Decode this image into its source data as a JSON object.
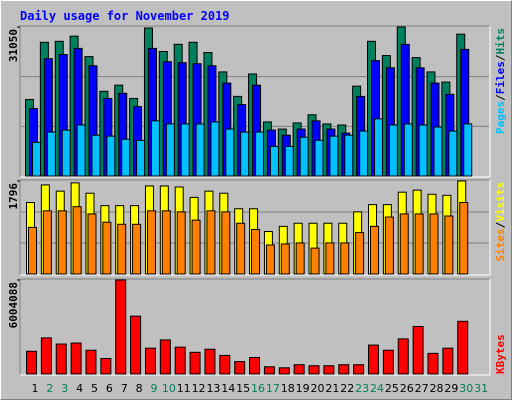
{
  "legend_separator": "/",
  "chart_data": [
    {
      "type": "bar",
      "title": "Daily usage for November 2019",
      "ylim": [
        0,
        31050
      ],
      "yticks": [
        31050
      ],
      "series": [
        {
          "name": "Hits",
          "color": "#00805c",
          "values": [
            15950,
            27860,
            28070,
            29140,
            24880,
            17650,
            18930,
            16160,
            30840,
            25950,
            27440,
            27860,
            25730,
            21690,
            16590,
            21270,
            11270,
            9780,
            11060,
            12760,
            10850,
            10630,
            18720,
            28070,
            25100,
            31050,
            24670,
            21690,
            19570,
            29560,
            null
          ]
        },
        {
          "name": "Files",
          "color": "#0000ff",
          "values": [
            14040,
            24460,
            25310,
            26590,
            22970,
            16160,
            17230,
            14460,
            26590,
            23820,
            23610,
            23400,
            22970,
            19360,
            14890,
            18930,
            9570,
            8510,
            9780,
            11490,
            9780,
            8930,
            16590,
            24040,
            22550,
            27440,
            22550,
            19360,
            17020,
            26380,
            null
          ]
        },
        {
          "name": "Pages",
          "color": "#00c0ff",
          "values": [
            7020,
            9150,
            9570,
            10630,
            8510,
            8300,
            7660,
            7440,
            11490,
            10850,
            10850,
            10850,
            11270,
            9780,
            9150,
            9150,
            6170,
            6170,
            8080,
            7440,
            8300,
            8510,
            9360,
            11910,
            10630,
            10850,
            10630,
            10210,
            9360,
            10850,
            null
          ]
        }
      ]
    },
    {
      "type": "bar",
      "ylim": [
        0,
        1796
      ],
      "yticks": [
        1796
      ],
      "series": [
        {
          "name": "Visits",
          "color": "#ffff00",
          "values": [
            1380,
            1720,
            1600,
            1760,
            1560,
            1320,
            1320,
            1320,
            1700,
            1700,
            1680,
            1480,
            1600,
            1560,
            1260,
            1260,
            820,
            920,
            980,
            980,
            980,
            980,
            1200,
            1340,
            1340,
            1580,
            1620,
            1540,
            1520,
            1796,
            null
          ]
        },
        {
          "name": "Sites",
          "color": "#ff8000",
          "values": [
            900,
            1220,
            1220,
            1300,
            1160,
            1000,
            960,
            960,
            1220,
            1220,
            1200,
            1040,
            1220,
            1200,
            980,
            860,
            560,
            580,
            600,
            500,
            600,
            600,
            800,
            920,
            1100,
            1160,
            1160,
            1160,
            1120,
            1380,
            null
          ]
        }
      ]
    },
    {
      "type": "bar",
      "ylim": [
        0,
        6004088
      ],
      "yticks": [
        6004088
      ],
      "categories": [
        "1",
        "2",
        "3",
        "4",
        "5",
        "6",
        "7",
        "8",
        "9",
        "10",
        "11",
        "12",
        "13",
        "14",
        "15",
        "16",
        "17",
        "18",
        "19",
        "20",
        "21",
        "22",
        "23",
        "24",
        "25",
        "26",
        "27",
        "28",
        "29",
        "30",
        "31"
      ],
      "category_colors": [
        "#000000",
        "#00805c",
        "#00805c",
        "#000000",
        "#000000",
        "#000000",
        "#000000",
        "#000000",
        "#00805c",
        "#00805c",
        "#000000",
        "#000000",
        "#000000",
        "#000000",
        "#000000",
        "#00805c",
        "#00805c",
        "#000000",
        "#000000",
        "#000000",
        "#000000",
        "#000000",
        "#00805c",
        "#00805c",
        "#000000",
        "#000000",
        "#000000",
        "#000000",
        "#000000",
        "#00805c",
        "#00805c"
      ],
      "series": [
        {
          "name": "KBytes",
          "color": "#ff0000",
          "values": [
            1451000,
            2309000,
            1913000,
            1979000,
            1517000,
            990000,
            6004088,
            3695000,
            1649000,
            2177000,
            1715000,
            1385000,
            1583000,
            1187000,
            792000,
            1055000,
            462000,
            396000,
            594000,
            528000,
            528000,
            594000,
            594000,
            1847000,
            1517000,
            2243000,
            3035000,
            1319000,
            1649000,
            3365000,
            null
          ]
        }
      ]
    }
  ]
}
